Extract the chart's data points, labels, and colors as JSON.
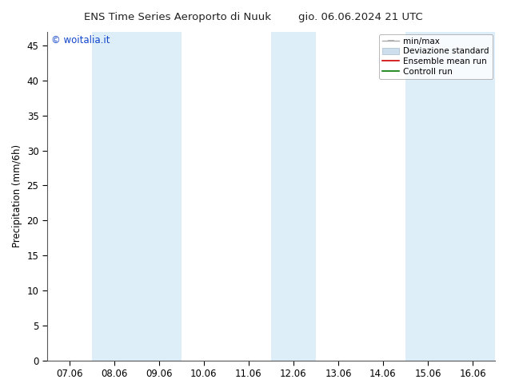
{
  "title_left": "ENS Time Series Aeroporto di Nuuk",
  "title_right": "gio. 06.06.2024 21 UTC",
  "ylabel": "Precipitation (mm/6h)",
  "ylim": [
    0,
    47
  ],
  "yticks": [
    0,
    5,
    10,
    15,
    20,
    25,
    30,
    35,
    40,
    45
  ],
  "x_labels": [
    "07.06",
    "08.06",
    "09.06",
    "10.06",
    "11.06",
    "12.06",
    "13.06",
    "14.06",
    "15.06",
    "16.06"
  ],
  "x_positions": [
    0,
    1,
    2,
    3,
    4,
    5,
    6,
    7,
    8,
    9
  ],
  "xlim": [
    -0.5,
    9.5
  ],
  "shaded_bands": [
    {
      "x_start": 0.5,
      "x_end": 2.5,
      "color": "#ddeef8"
    },
    {
      "x_start": 4.5,
      "x_end": 5.5,
      "color": "#ddeef8"
    },
    {
      "x_start": 7.5,
      "x_end": 9.5,
      "color": "#ddeef8"
    }
  ],
  "watermark_text": "© woitalia.it",
  "watermark_color": "#1144cc",
  "legend_entries": [
    {
      "label": "min/max",
      "color": "#aaaaaa",
      "style": "errorbar"
    },
    {
      "label": "Deviazione standard",
      "color": "#c8dcea",
      "style": "patch"
    },
    {
      "label": "Ensemble mean run",
      "color": "#cc0000",
      "style": "line"
    },
    {
      "label": "Controll run",
      "color": "#007700",
      "style": "line"
    }
  ],
  "bg_color": "#ffffff",
  "plot_bg_color": "#ffffff",
  "font_size": 8.5,
  "title_font_size": 9.5,
  "legend_font_size": 7.5
}
